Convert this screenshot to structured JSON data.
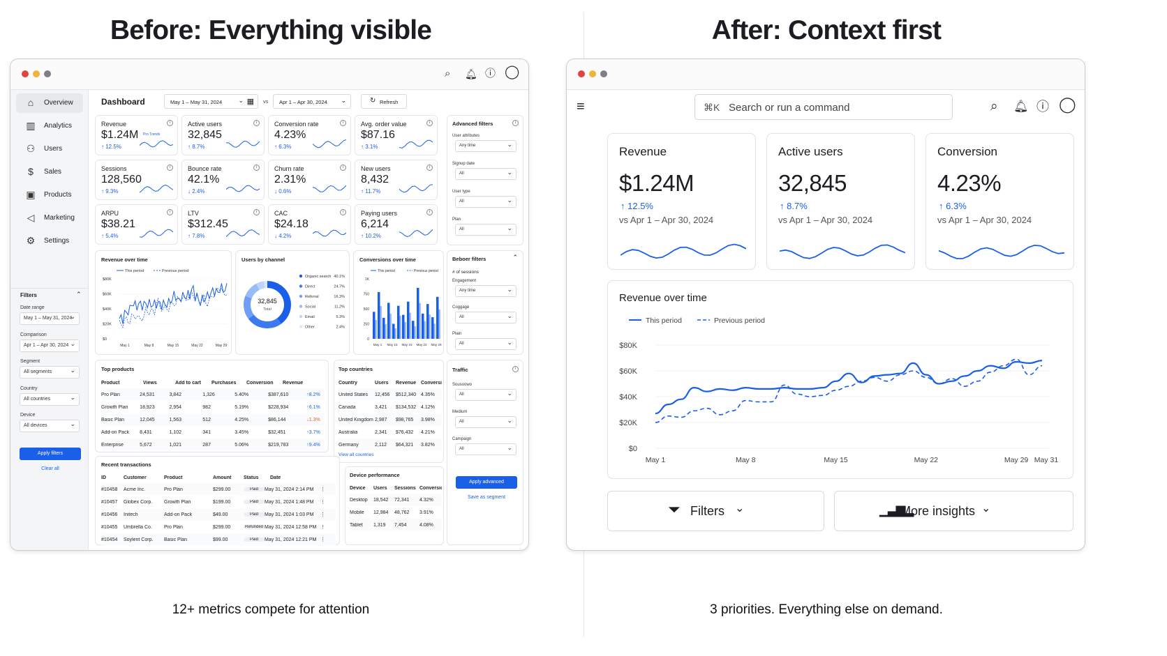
{
  "headings": {
    "before": "Before: Everything visible",
    "after": "After: Context first"
  },
  "captions": {
    "before": "12+ metrics compete for attention",
    "after": "3 priorities. Everything else on demand."
  },
  "colors": {
    "accent": "#1a5fe8",
    "close": "#e0443e",
    "min": "#f0b43a",
    "max": "#7c7f86"
  },
  "before": {
    "title": "Dashboard",
    "date_range": "May 1 – May 31, 2024",
    "vs": "vs",
    "compare_range": "Apr 1 – Apr 30, 2024",
    "refresh": "Refresh",
    "nav": [
      {
        "label": "Overview",
        "icon": "home-icon"
      },
      {
        "label": "Analytics",
        "icon": "bar-chart-icon"
      },
      {
        "label": "Users",
        "icon": "users-icon"
      },
      {
        "label": "Sales",
        "icon": "dollar-icon"
      },
      {
        "label": "Products",
        "icon": "box-icon"
      },
      {
        "label": "Marketing",
        "icon": "megaphone-icon"
      },
      {
        "label": "Settings",
        "icon": "gear-icon"
      }
    ],
    "filters": {
      "title": "Filters",
      "fields": [
        {
          "label": "Date range",
          "value": "May 1 – May 31, 2024"
        },
        {
          "label": "Comparison",
          "value": "Apr 1 – Apr 30, 2024"
        },
        {
          "label": "Segment",
          "value": "All segments"
        },
        {
          "label": "Country",
          "value": "All countries"
        },
        {
          "label": "Device",
          "value": "All devices"
        }
      ],
      "apply": "Apply filters",
      "clear": "Clear all"
    },
    "kpis": [
      {
        "label": "Revenue",
        "value": "$1.24M",
        "delta": "12.5%",
        "dir": "up",
        "tag": "Pro Trends"
      },
      {
        "label": "Active users",
        "value": "32,845",
        "delta": "8.7%",
        "dir": "up"
      },
      {
        "label": "Conversion rate",
        "value": "4.23%",
        "delta": "6.3%",
        "dir": "up"
      },
      {
        "label": "Avg. order value",
        "value": "$87.16",
        "delta": "3.1%",
        "dir": "up"
      },
      {
        "label": "Sessions",
        "value": "128,560",
        "delta": "9.3%",
        "dir": "up"
      },
      {
        "label": "Bounce rate",
        "value": "42.1%",
        "delta": "2.4%",
        "dir": "down"
      },
      {
        "label": "Churn rate",
        "value": "2.31%",
        "delta": "0.6%",
        "dir": "down"
      },
      {
        "label": "New users",
        "value": "8,432",
        "delta": "11.7%",
        "dir": "up"
      },
      {
        "label": "ARPU",
        "value": "$38.21",
        "delta": "5.4%",
        "dir": "up"
      },
      {
        "label": "LTV",
        "value": "$312.45",
        "delta": "7.8%",
        "dir": "up"
      },
      {
        "label": "CAC",
        "value": "$24.18",
        "delta": "4.2%",
        "dir": "down"
      },
      {
        "label": "Paying users",
        "value": "6,214",
        "delta": "10.2%",
        "dir": "up"
      }
    ],
    "adv_filters": {
      "title": "Advanced filters",
      "fields": [
        {
          "label": "User attributes",
          "value": "Any time"
        },
        {
          "label": "Signup date",
          "value": "All"
        },
        {
          "label": "User type",
          "value": "All"
        },
        {
          "label": "Plan",
          "value": "All"
        }
      ]
    },
    "beh_filters": {
      "title": "Beboer filters",
      "sub": "# of sessions",
      "fields": [
        {
          "label": "Engagement",
          "value": "Any time"
        },
        {
          "label": "Coggage",
          "value": "All"
        },
        {
          "label": "Plain",
          "value": "All"
        }
      ]
    },
    "traffic": {
      "title": "Traffic",
      "fields": [
        {
          "label": "Sousoowo",
          "value": "All"
        },
        {
          "label": "Medium",
          "value": "All"
        },
        {
          "label": "Campaign",
          "value": "All"
        }
      ],
      "apply": "Apply advanced",
      "save": "Save as segment"
    },
    "rev_chart": {
      "title": "Revenue over time",
      "legend": [
        "This period",
        "Previous period"
      ],
      "yticks": [
        "$80K",
        "$60K",
        "$40K",
        "$20K",
        "$0"
      ],
      "xticks": [
        "May 1",
        "May 8",
        "May 15",
        "May 22",
        "May 29"
      ]
    },
    "channel": {
      "title": "Users by channel",
      "center_value": "32,845",
      "center_label": "Total",
      "items": [
        {
          "name": "Organic search",
          "pct": "40.1%",
          "v": 40.1,
          "color": "#1a5fe8"
        },
        {
          "name": "Direct",
          "pct": "24.7%",
          "v": 24.7,
          "color": "#3d7af0"
        },
        {
          "name": "Referral",
          "pct": "16.3%",
          "v": 16.3,
          "color": "#6e9ff5"
        },
        {
          "name": "Social",
          "pct": "11.2%",
          "v": 11.2,
          "color": "#98bcf8"
        },
        {
          "name": "Email",
          "pct": "5.3%",
          "v": 5.3,
          "color": "#bcd3fb"
        },
        {
          "name": "Other",
          "pct": "2.4%",
          "v": 2.4,
          "color": "#dbe7fd"
        }
      ]
    },
    "conv": {
      "title": "Conversions over time",
      "legend": [
        "This period",
        "Previous period"
      ],
      "yticks": [
        "1K",
        "750",
        "500",
        "250",
        "0"
      ],
      "xticks": [
        "May 1",
        "May 15",
        "May 22",
        "May 29"
      ],
      "xticks_b": "May 15"
    },
    "products": {
      "title": "Top products",
      "headers": [
        "Product",
        "Views",
        "Add to cart",
        "Purchases",
        "Conversion",
        "Revenue"
      ],
      "rows": [
        [
          "Pro Plan",
          "24,531",
          "3,842",
          "1,326",
          "5.40%",
          "$387,610",
          "8.2%",
          "up"
        ],
        [
          "Growth Plan",
          "18,923",
          "2,954",
          "982",
          "5.19%",
          "$228,934",
          "6.1%",
          "up"
        ],
        [
          "Basic Plan",
          "12,045",
          "1,563",
          "512",
          "4.25%",
          "$86,144",
          "1.3%",
          "down"
        ],
        [
          "Add-on Pack",
          "8,431",
          "1,102",
          "341",
          "3.45%",
          "$32,451",
          "3.7%",
          "up"
        ],
        [
          "Enterprise",
          "5,672",
          "1,021",
          "287",
          "5.06%",
          "$219,783",
          "9.4%",
          "up"
        ]
      ]
    },
    "countries": {
      "title": "Top countries",
      "headers": [
        "Country",
        "Users",
        "Revenue",
        "Conversion"
      ],
      "rows": [
        [
          "United States",
          "12,456",
          "$512,340",
          "4.35%"
        ],
        [
          "Canada",
          "3,421",
          "$134,532",
          "4.12%"
        ],
        [
          "United Kingdom",
          "2,987",
          "$98,765",
          "3.98%"
        ],
        [
          "Australia",
          "2,341",
          "$76,432",
          "4.21%"
        ],
        [
          "Germany",
          "2,112",
          "$64,321",
          "3.82%"
        ]
      ],
      "link": "View all countries"
    },
    "transactions": {
      "title": "Recent transactions",
      "headers": [
        "ID",
        "Customer",
        "Product",
        "Amount",
        "Status",
        "Date"
      ],
      "rows": [
        [
          "#10458",
          "Acme Inc.",
          "Pro Plan",
          "$299.00",
          "Paid",
          "May 31, 2024 2:14 PM"
        ],
        [
          "#10457",
          "Globex Corp.",
          "Growth Plan",
          "$199.00",
          "Paid",
          "May 31, 2024 1:48 PM"
        ],
        [
          "#10456",
          "Initech",
          "Add-on Pack",
          "$49.00",
          "Paid",
          "May 31, 2024 1:03 PM"
        ],
        [
          "#10455",
          "Umbrella Co.",
          "Pro Plan",
          "$299.00",
          "Refunded",
          "May 31, 2024 12:58 PM"
        ],
        [
          "#10454",
          "Soylent Corp.",
          "Basic Plan",
          "$99.00",
          "Paid",
          "May 31, 2024 12:21 PM"
        ]
      ]
    },
    "device": {
      "title": "Device performance",
      "headers": [
        "Device",
        "Users",
        "Sessions",
        "Conversion"
      ],
      "rows": [
        [
          "Desktop",
          "18,542",
          "72,341",
          "4.32%"
        ],
        [
          "Mobile",
          "12,984",
          "48,762",
          "3.91%"
        ],
        [
          "Tablet",
          "1,319",
          "7,454",
          "4.08%"
        ]
      ]
    }
  },
  "after": {
    "search": {
      "shortcut": "⌘K",
      "placeholder": "Search or run a command"
    },
    "kpis": [
      {
        "label": "Revenue",
        "value": "$1.24M",
        "delta": "12.5%",
        "compare": "vs Apr 1 – Apr 30, 2024"
      },
      {
        "label": "Active users",
        "value": "32,845",
        "delta": "8.7%",
        "compare": "vs Apr 1 – Apr 30, 2024"
      },
      {
        "label": "Conversion",
        "value": "4.23%",
        "delta": "6.3%",
        "compare": "vs Apr 1 – Apr 30, 2024"
      }
    ],
    "chart_title": "Revenue over time",
    "filters_btn": "Filters",
    "insights_btn": "More insights"
  },
  "chart_data": {
    "type": "line",
    "title": "Revenue over time",
    "xlabel": "",
    "ylabel": "",
    "xticks": [
      "May 1",
      "May 8",
      "May 15",
      "May 22",
      "May 29",
      "May 31"
    ],
    "yticks": [
      "$80K",
      "$60K",
      "$40K",
      "$20K",
      "$0"
    ],
    "ylim": [
      0,
      80000
    ],
    "x": [
      1,
      2,
      3,
      4,
      5,
      6,
      7,
      8,
      9,
      10,
      11,
      12,
      13,
      14,
      15,
      16,
      17,
      18,
      19,
      20,
      21,
      22,
      23,
      24,
      25,
      26,
      27,
      28,
      29,
      30,
      31
    ],
    "series": [
      {
        "name": "This period",
        "style": "solid",
        "values": [
          27000,
          34000,
          38000,
          47000,
          44000,
          46000,
          45000,
          47000,
          46000,
          46000,
          47000,
          46000,
          46000,
          47000,
          52000,
          58000,
          51000,
          56000,
          57000,
          58000,
          66000,
          57000,
          50000,
          52000,
          56000,
          60000,
          64000,
          62000,
          67000,
          66000,
          68000
        ]
      },
      {
        "name": "Previous period",
        "style": "dashed",
        "values": [
          20000,
          25000,
          24000,
          29000,
          31000,
          26000,
          29000,
          37000,
          36000,
          36000,
          49000,
          42000,
          40000,
          41000,
          45000,
          48000,
          52000,
          55000,
          52000,
          57000,
          60000,
          55000,
          50000,
          54000,
          48000,
          52000,
          59000,
          64000,
          69000,
          57000,
          64000
        ]
      }
    ]
  }
}
